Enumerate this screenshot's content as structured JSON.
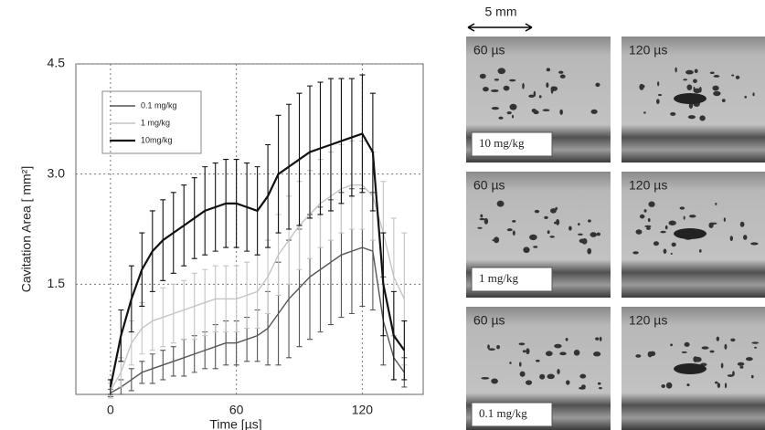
{
  "chart_data": {
    "type": "line",
    "y_label": "Cavitation Area [ mm²]",
    "x_label": "Time [µs]",
    "x": [
      0,
      5,
      10,
      15,
      20,
      25,
      30,
      35,
      40,
      45,
      50,
      55,
      60,
      65,
      70,
      75,
      80,
      85,
      90,
      95,
      100,
      105,
      110,
      115,
      120,
      125,
      130,
      135,
      140
    ],
    "series": [
      {
        "name": "0.1 mg/kg",
        "color": "#555555",
        "values": [
          0.02,
          0.1,
          0.2,
          0.3,
          0.35,
          0.4,
          0.45,
          0.5,
          0.55,
          0.6,
          0.65,
          0.7,
          0.7,
          0.75,
          0.8,
          0.9,
          1.1,
          1.3,
          1.45,
          1.6,
          1.7,
          1.8,
          1.9,
          1.95,
          2.0,
          1.95,
          1.0,
          0.5,
          0.3
        ],
        "errors": [
          0.05,
          0.1,
          0.15,
          0.15,
          0.2,
          0.2,
          0.2,
          0.25,
          0.25,
          0.25,
          0.3,
          0.3,
          0.3,
          0.3,
          0.35,
          0.5,
          0.7,
          0.8,
          0.8,
          0.85,
          0.85,
          0.85,
          0.85,
          0.85,
          0.8,
          0.8,
          0.6,
          0.3,
          0.2
        ]
      },
      {
        "name": "1 mg/kg",
        "color": "#c4c4c4",
        "values": [
          0.05,
          0.3,
          0.7,
          0.9,
          1.0,
          1.05,
          1.1,
          1.15,
          1.2,
          1.25,
          1.3,
          1.3,
          1.3,
          1.35,
          1.4,
          1.6,
          1.9,
          2.1,
          2.3,
          2.45,
          2.6,
          2.7,
          2.8,
          2.85,
          2.85,
          2.7,
          2.2,
          1.6,
          1.3
        ],
        "errors": [
          0.1,
          0.2,
          0.3,
          0.35,
          0.4,
          0.4,
          0.4,
          0.4,
          0.45,
          0.45,
          0.45,
          0.45,
          0.45,
          0.45,
          0.5,
          0.5,
          0.55,
          0.6,
          0.6,
          0.6,
          0.6,
          0.6,
          0.6,
          0.6,
          0.6,
          0.6,
          0.7,
          0.8,
          0.9
        ]
      },
      {
        "name": "10mg/kg",
        "color": "#111111",
        "values": [
          0.1,
          0.8,
          1.3,
          1.7,
          1.95,
          2.1,
          2.2,
          2.3,
          2.4,
          2.5,
          2.55,
          2.6,
          2.6,
          2.55,
          2.5,
          2.7,
          3.0,
          3.1,
          3.2,
          3.3,
          3.35,
          3.4,
          3.45,
          3.5,
          3.55,
          3.3,
          1.5,
          0.8,
          0.6
        ],
        "errors": [
          0.1,
          0.35,
          0.45,
          0.5,
          0.55,
          0.55,
          0.55,
          0.55,
          0.55,
          0.6,
          0.6,
          0.6,
          0.6,
          0.6,
          0.6,
          0.7,
          0.8,
          0.85,
          0.9,
          0.9,
          0.9,
          0.9,
          0.85,
          0.8,
          0.8,
          0.8,
          0.7,
          0.6,
          0.4
        ]
      }
    ],
    "xlim": [
      -16.5,
      149
    ],
    "ylim": [
      0,
      4.5
    ],
    "xticks": [
      0,
      60,
      120
    ],
    "yticks": [
      1.5,
      {
        "value": 3,
        "label": "3.0"
      },
      4.5
    ],
    "grid": true
  },
  "image_panels": {
    "scale_bar": "5 mm",
    "rows": [
      {
        "label": "10 mg/kg",
        "times": [
          "60 µs",
          "120 µs"
        ]
      },
      {
        "label": "1 mg/kg",
        "times": [
          "60 µs",
          "120 µs"
        ]
      },
      {
        "label": "0.1 mg/kg",
        "times": [
          "60 µs",
          "120 µs"
        ]
      }
    ]
  }
}
